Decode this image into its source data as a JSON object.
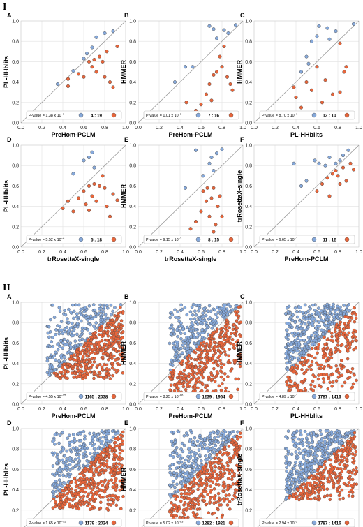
{
  "sections": [
    "I",
    "II"
  ],
  "colors": {
    "blue": "#86a9db",
    "orange": "#e8653a",
    "grid": "#e2e2e2",
    "diag": "#9a9a9a",
    "edge": "#444444"
  },
  "chart_data": [
    {
      "section": "I",
      "panel": "A",
      "type": "scatter",
      "xlabel": "PreHom-PCLM",
      "ylabel": "PL-HHblits",
      "xlim": [
        0,
        1
      ],
      "ylim": [
        0,
        1
      ],
      "ticks": [
        "0.0",
        "0.2",
        "0.4",
        "0.6",
        "0.8",
        "1.0"
      ],
      "pvalue_base": "1.38",
      "pvalue_exp": "−3",
      "ratio": "4 : 19",
      "grid": true,
      "points": [
        [
          0.35,
          0.38
        ],
        [
          0.45,
          0.43
        ],
        [
          0.5,
          0.51
        ],
        [
          0.6,
          0.63
        ],
        [
          0.63,
          0.68
        ],
        [
          0.68,
          0.74
        ],
        [
          0.72,
          0.84
        ],
        [
          0.8,
          0.88
        ],
        [
          0.88,
          0.9
        ],
        [
          0.45,
          0.36
        ],
        [
          0.55,
          0.48
        ],
        [
          0.6,
          0.45
        ],
        [
          0.65,
          0.6
        ],
        [
          0.68,
          0.55
        ],
        [
          0.7,
          0.62
        ],
        [
          0.72,
          0.5
        ],
        [
          0.75,
          0.65
        ],
        [
          0.78,
          0.6
        ],
        [
          0.8,
          0.45
        ],
        [
          0.85,
          0.4
        ],
        [
          0.88,
          0.35
        ],
        [
          0.82,
          0.7
        ],
        [
          0.92,
          0.75
        ]
      ]
    },
    {
      "section": "I",
      "panel": "B",
      "type": "scatter",
      "xlabel": "PreHom-PCLM",
      "ylabel": "HMMER",
      "xlim": [
        0,
        1
      ],
      "ylim": [
        0,
        1
      ],
      "ticks": [
        "0.0",
        "0.2",
        "0.4",
        "0.6",
        "0.8",
        "1.0"
      ],
      "pvalue_base": "1.01",
      "pvalue_exp": "−2",
      "ratio": "7 : 16",
      "grid": true,
      "points": [
        [
          0.35,
          0.4
        ],
        [
          0.45,
          0.55
        ],
        [
          0.52,
          0.55
        ],
        [
          0.68,
          0.95
        ],
        [
          0.72,
          0.92
        ],
        [
          0.75,
          0.83
        ],
        [
          0.82,
          0.91
        ],
        [
          0.46,
          0.2
        ],
        [
          0.55,
          0.12
        ],
        [
          0.6,
          0.18
        ],
        [
          0.65,
          0.28
        ],
        [
          0.68,
          0.38
        ],
        [
          0.7,
          0.22
        ],
        [
          0.72,
          0.47
        ],
        [
          0.75,
          0.5
        ],
        [
          0.78,
          0.65
        ],
        [
          0.8,
          0.55
        ],
        [
          0.82,
          0.75
        ],
        [
          0.85,
          0.45
        ],
        [
          0.88,
          0.38
        ],
        [
          0.9,
          0.32
        ],
        [
          0.86,
          0.88
        ],
        [
          0.93,
          0.96
        ]
      ]
    },
    {
      "section": "I",
      "panel": "C",
      "type": "scatter",
      "xlabel": "PL-HHblits",
      "ylabel": "HMMER",
      "xlim": [
        0,
        1
      ],
      "ylim": [
        0,
        1
      ],
      "ticks": [
        "0.0",
        "0.2",
        "0.4",
        "0.6",
        "0.8",
        "1.0"
      ],
      "pvalue_base": "8.70",
      "pvalue_exp": "−1",
      "ratio": "13 : 10",
      "grid": true,
      "points": [
        [
          0.38,
          0.35
        ],
        [
          0.45,
          0.5
        ],
        [
          0.5,
          0.65
        ],
        [
          0.52,
          0.58
        ],
        [
          0.55,
          0.8
        ],
        [
          0.6,
          0.85
        ],
        [
          0.62,
          0.95
        ],
        [
          0.7,
          0.93
        ],
        [
          0.72,
          0.82
        ],
        [
          0.78,
          0.9
        ],
        [
          0.82,
          0.78
        ],
        [
          0.95,
          0.97
        ],
        [
          0.4,
          0.25
        ],
        [
          0.45,
          0.15
        ],
        [
          0.5,
          0.4
        ],
        [
          0.55,
          0.32
        ],
        [
          0.6,
          0.55
        ],
        [
          0.65,
          0.2
        ],
        [
          0.75,
          0.28
        ],
        [
          0.82,
          0.3
        ],
        [
          0.86,
          0.5
        ],
        [
          0.88,
          0.55
        ],
        [
          0.68,
          0.42
        ]
      ]
    },
    {
      "section": "I",
      "panel": "D",
      "type": "scatter",
      "xlabel": "trRosettaX-single",
      "ylabel": "PL-HHblits",
      "xlim": [
        0,
        1
      ],
      "ylim": [
        0,
        1
      ],
      "ticks": [
        "0.0",
        "0.2",
        "0.4",
        "0.6",
        "0.8",
        "1.0"
      ],
      "pvalue_base": "5.52",
      "pvalue_exp": "−4",
      "ratio": "5 : 18",
      "grid": true,
      "points": [
        [
          0.5,
          0.72
        ],
        [
          0.6,
          0.85
        ],
        [
          0.65,
          0.88
        ],
        [
          0.68,
          0.93
        ],
        [
          0.7,
          0.78
        ],
        [
          0.4,
          0.38
        ],
        [
          0.45,
          0.45
        ],
        [
          0.5,
          0.35
        ],
        [
          0.55,
          0.48
        ],
        [
          0.6,
          0.55
        ],
        [
          0.62,
          0.42
        ],
        [
          0.65,
          0.6
        ],
        [
          0.68,
          0.5
        ],
        [
          0.7,
          0.62
        ],
        [
          0.72,
          0.45
        ],
        [
          0.75,
          0.6
        ],
        [
          0.78,
          0.7
        ],
        [
          0.8,
          0.58
        ],
        [
          0.82,
          0.4
        ],
        [
          0.85,
          0.3
        ],
        [
          0.88,
          0.52
        ],
        [
          0.92,
          0.46
        ],
        [
          0.65,
          0.36
        ]
      ]
    },
    {
      "section": "I",
      "panel": "E",
      "type": "scatter",
      "xlabel": "trRosettaX-single",
      "ylabel": "HMMER",
      "xlim": [
        0,
        1
      ],
      "ylim": [
        0,
        1
      ],
      "ticks": [
        "0.0",
        "0.2",
        "0.4",
        "0.6",
        "0.8",
        "1.0"
      ],
      "pvalue_base": "9.15",
      "pvalue_exp": "−3",
      "ratio": "8 : 15",
      "grid": true,
      "points": [
        [
          0.45,
          0.58
        ],
        [
          0.55,
          0.95
        ],
        [
          0.62,
          0.7
        ],
        [
          0.68,
          0.82
        ],
        [
          0.7,
          0.88
        ],
        [
          0.75,
          0.92
        ],
        [
          0.8,
          0.96
        ],
        [
          0.72,
          0.75
        ],
        [
          0.5,
          0.18
        ],
        [
          0.55,
          0.25
        ],
        [
          0.58,
          0.1
        ],
        [
          0.6,
          0.35
        ],
        [
          0.62,
          0.55
        ],
        [
          0.65,
          0.45
        ],
        [
          0.68,
          0.3
        ],
        [
          0.7,
          0.48
        ],
        [
          0.72,
          0.15
        ],
        [
          0.74,
          0.22
        ],
        [
          0.76,
          0.4
        ],
        [
          0.78,
          0.5
        ],
        [
          0.8,
          0.3
        ],
        [
          0.66,
          0.58
        ],
        [
          0.72,
          0.58
        ]
      ]
    },
    {
      "section": "I",
      "panel": "F",
      "type": "scatter",
      "xlabel": "PreHom-PCLM",
      "ylabel": "trRosettaX-single",
      "xlim": [
        0,
        1
      ],
      "ylim": [
        0,
        1
      ],
      "ticks": [
        "0.0",
        "0.2",
        "0.4",
        "0.6",
        "0.8",
        "1.0"
      ],
      "pvalue_base": "6.65",
      "pvalue_exp": "−1",
      "ratio": "11 : 12",
      "grid": true,
      "points": [
        [
          0.38,
          0.82
        ],
        [
          0.45,
          0.6
        ],
        [
          0.5,
          0.65
        ],
        [
          0.58,
          0.85
        ],
        [
          0.62,
          0.82
        ],
        [
          0.68,
          0.8
        ],
        [
          0.72,
          0.88
        ],
        [
          0.78,
          0.82
        ],
        [
          0.85,
          0.9
        ],
        [
          0.9,
          0.95
        ],
        [
          0.82,
          0.85
        ],
        [
          0.6,
          0.55
        ],
        [
          0.65,
          0.62
        ],
        [
          0.7,
          0.68
        ],
        [
          0.72,
          0.5
        ],
        [
          0.75,
          0.72
        ],
        [
          0.78,
          0.75
        ],
        [
          0.8,
          0.7
        ],
        [
          0.82,
          0.62
        ],
        [
          0.85,
          0.78
        ],
        [
          0.88,
          0.65
        ],
        [
          0.92,
          0.82
        ],
        [
          0.95,
          0.76
        ]
      ]
    },
    {
      "section": "II",
      "panel": "A",
      "type": "scatter",
      "xlabel": "PreHom-PCLM",
      "ylabel": "PL-HHblits",
      "xlim": [
        0,
        1
      ],
      "ylim": [
        0,
        1
      ],
      "ticks": [
        "0.0",
        "0.2",
        "0.4",
        "0.6",
        "0.8",
        "1.0"
      ],
      "pvalue_base": "4.55",
      "pvalue_exp": "−95",
      "ratio": "1165 : 2038",
      "grid": true,
      "cloud": {
        "n_blue": 1165,
        "n_orange": 2038,
        "xmin": 0.25,
        "xmax": 0.98,
        "ymin": 0.25,
        "ymax": 0.98
      }
    },
    {
      "section": "II",
      "panel": "B",
      "type": "scatter",
      "xlabel": "PreHom-PCLM",
      "ylabel": "HMMER",
      "xlim": [
        0,
        1
      ],
      "ylim": [
        0,
        1
      ],
      "ticks": [
        "0.0",
        "0.2",
        "0.4",
        "0.6",
        "0.8",
        "1.0"
      ],
      "pvalue_base": "8.25",
      "pvalue_exp": "−66",
      "ratio": "1239 : 1964",
      "grid": true,
      "cloud": {
        "n_blue": 1239,
        "n_orange": 1964,
        "xmin": 0.3,
        "xmax": 0.98,
        "ymin": 0.05,
        "ymax": 0.98
      }
    },
    {
      "section": "II",
      "panel": "C",
      "type": "scatter",
      "xlabel": "PL-HHblits",
      "ylabel": "HMMER",
      "xlim": [
        0,
        1
      ],
      "ylim": [
        0,
        1
      ],
      "ticks": [
        "0.0",
        "0.2",
        "0.4",
        "0.6",
        "0.8",
        "1.0"
      ],
      "pvalue_base": "4.89",
      "pvalue_exp": "−1",
      "ratio": "1787 : 1416",
      "grid": true,
      "cloud": {
        "n_blue": 1787,
        "n_orange": 1416,
        "xmin": 0.3,
        "xmax": 0.98,
        "ymin": 0.05,
        "ymax": 0.98
      }
    },
    {
      "section": "II",
      "panel": "D",
      "type": "scatter",
      "xlabel": "trRosettaX-single",
      "ylabel": "PL-HHblits",
      "xlim": [
        0,
        1
      ],
      "ylim": [
        0,
        1
      ],
      "ticks": [
        "0.0",
        "0.2",
        "0.4",
        "0.6",
        "0.8",
        "1.0"
      ],
      "pvalue_base": "1.65",
      "pvalue_exp": "−95",
      "ratio": "1179 : 2024",
      "grid": true,
      "cloud": {
        "n_blue": 1179,
        "n_orange": 2024,
        "xmin": 0.3,
        "xmax": 0.98,
        "ymin": 0.2,
        "ymax": 0.98
      }
    },
    {
      "section": "II",
      "panel": "E",
      "type": "scatter",
      "xlabel": "trRosettaX-single",
      "ylabel": "HMMER",
      "xlim": [
        0,
        1
      ],
      "ylim": [
        0,
        1
      ],
      "ticks": [
        "0.0",
        "0.2",
        "0.4",
        "0.6",
        "0.8",
        "1.0"
      ],
      "pvalue_base": "5.02",
      "pvalue_exp": "−63",
      "ratio": "1282 : 1921",
      "grid": true,
      "cloud": {
        "n_blue": 1282,
        "n_orange": 1921,
        "xmin": 0.3,
        "xmax": 0.98,
        "ymin": 0.05,
        "ymax": 0.98
      }
    },
    {
      "section": "II",
      "panel": "F",
      "type": "scatter",
      "xlabel": "PreHom-PCLM",
      "ylabel": "trRosettaX-single",
      "xlim": [
        0,
        1
      ],
      "ylim": [
        0,
        1
      ],
      "ticks": [
        "0.0",
        "0.2",
        "0.4",
        "0.6",
        "0.8",
        "1.0"
      ],
      "pvalue_base": "2.94",
      "pvalue_exp": "−2",
      "ratio": "1787 : 1416",
      "grid": true,
      "cloud": {
        "n_blue": 1787,
        "n_orange": 1416,
        "xmin": 0.3,
        "xmax": 0.98,
        "ymin": 0.3,
        "ymax": 0.98
      }
    }
  ]
}
